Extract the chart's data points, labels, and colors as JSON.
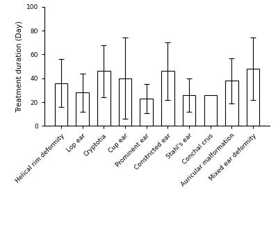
{
  "categories": [
    "Helical rim deformity",
    "Lop ear",
    "Cryptotia",
    "Cup ear",
    "Prominent ear",
    "Constricted ear",
    "Stahl's ear",
    "Conchal crus",
    "Auricular malformation",
    "Mixed ear deformity"
  ],
  "values": [
    36,
    28,
    46,
    40,
    23,
    46,
    26,
    26,
    38,
    48
  ],
  "errors_upper": [
    20,
    16,
    22,
    34,
    12,
    24,
    14,
    0,
    19,
    26
  ],
  "errors_lower": [
    20,
    16,
    22,
    34,
    12,
    24,
    14,
    0,
    19,
    26
  ],
  "bar_color": "#ffffff",
  "bar_edgecolor": "#000000",
  "error_color": "#000000",
  "ylabel": "Treatment duration (Day)",
  "ylim": [
    0,
    100
  ],
  "yticks": [
    0,
    20,
    40,
    60,
    80,
    100
  ],
  "bar_width": 0.6,
  "capsize": 3,
  "background_color": "#ffffff",
  "tick_fontsize": 6.5,
  "ylabel_fontsize": 7.5,
  "linewidth": 0.8,
  "figwidth": 4.0,
  "figheight": 3.24,
  "dpi": 100
}
